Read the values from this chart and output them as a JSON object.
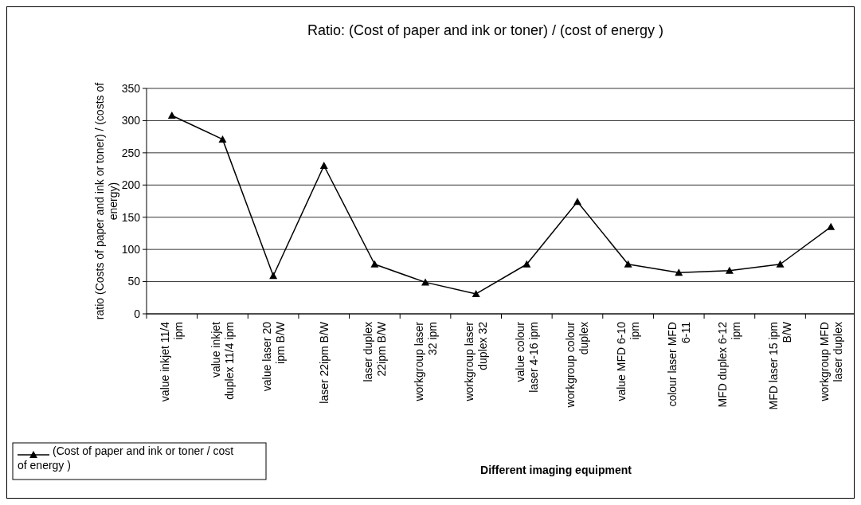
{
  "chart_data": {
    "type": "line",
    "title": "Ratio: (Cost of paper and ink or toner) / (cost of energy )",
    "xlabel": "Different imaging equipment",
    "ylabel": "ratio (Costs of paper and ink or toner) / (costs of energy)",
    "categories": [
      "value inkjet 11/4 ipm",
      "value inkjet duplex 11/4 ipm",
      "value laser 20 ipm B/W",
      "laser 22ipm B/W",
      "laser duplex 22ipm B/W",
      "workgroup laser 32 ipm",
      "workgroup laser duplex 32",
      "value colour laser 4-16 ipm",
      "workgroup colour duplex",
      "value MFD 6-10 ipm",
      "colour laser MFD 6-11",
      "MFD duplex 6-12 ipm",
      "MFD laser 15 ipm B/W",
      "workgroup MFD laser duplex"
    ],
    "series": [
      {
        "name": "(Cost of paper and ink or toner / cost of energy )",
        "color": "#000000",
        "values": [
          308,
          271,
          59,
          230,
          77,
          49,
          31,
          77,
          174,
          77,
          64,
          67,
          77,
          135
        ]
      }
    ],
    "ylim": [
      0,
      350
    ],
    "yticks": [
      0,
      50,
      100,
      150,
      200,
      250,
      300,
      350
    ],
    "grid": "y",
    "legend": "bottom left",
    "marker": "triangle",
    "line_style": "solid"
  }
}
